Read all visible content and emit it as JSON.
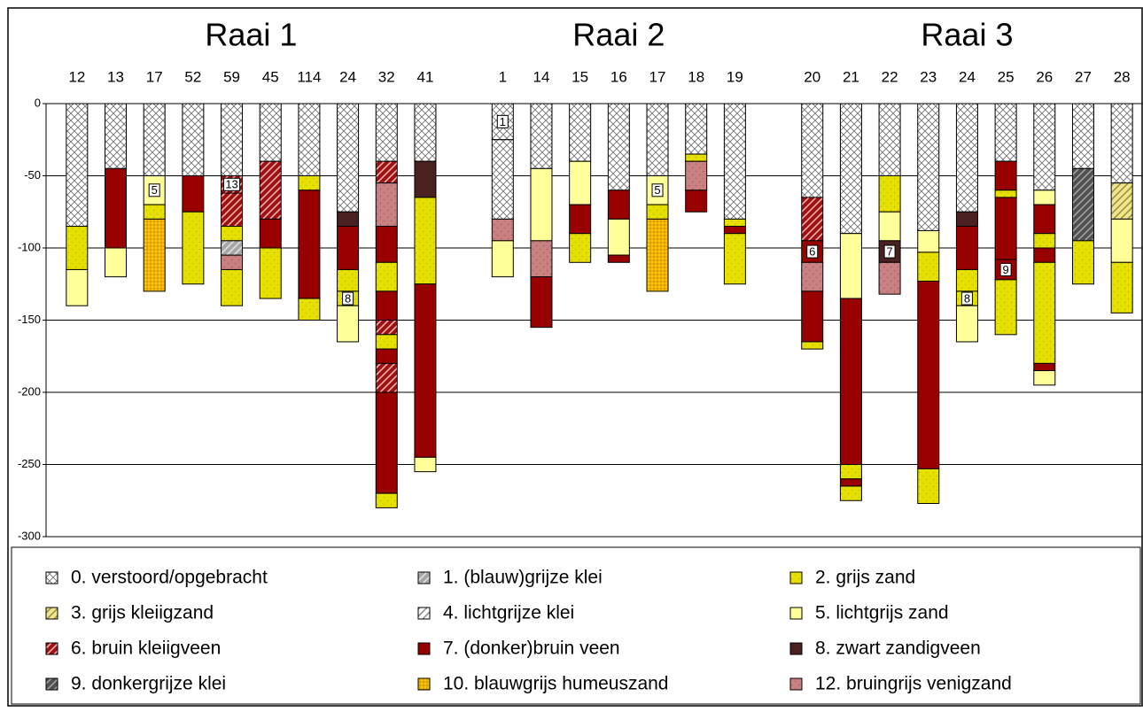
{
  "chart_data": {
    "type": "stacked-columns",
    "groups": [
      {
        "title": "Raai 1"
      },
      {
        "title": "Raai 2"
      },
      {
        "title": "Raai 3"
      }
    ],
    "categories": [
      "12",
      "13",
      "17",
      "52",
      "59",
      "45",
      "114",
      "24",
      "32",
      "41",
      null,
      "1",
      "14",
      "15",
      "16",
      "17",
      "18",
      "19",
      null,
      "20",
      "21",
      "22",
      "23",
      "24",
      "25",
      "26",
      "27",
      "28"
    ],
    "columns": [
      [
        {
          "soil": 0,
          "value": -85
        },
        {
          "soil": 2,
          "value": -30
        },
        {
          "soil": 5,
          "value": -25
        }
      ],
      [
        {
          "soil": 0,
          "value": -45
        },
        {
          "soil": 7,
          "value": -55
        },
        {
          "soil": 5,
          "value": -20
        }
      ],
      [
        {
          "soil": 0,
          "value": -50
        },
        {
          "soil": 5,
          "value": -20,
          "note": "5"
        },
        {
          "soil": 2,
          "value": -10
        },
        {
          "soil": 10,
          "value": -50
        }
      ],
      [
        {
          "soil": 0,
          "value": -50
        },
        {
          "soil": 7,
          "value": -25
        },
        {
          "soil": 2,
          "value": -50
        }
      ],
      [
        {
          "soil": 0,
          "value": -50
        },
        {
          "soil": 6,
          "value": -12,
          "note": "13"
        },
        {
          "soil": 6,
          "value": -23
        },
        {
          "soil": 2,
          "value": -10
        },
        {
          "soil": 1,
          "value": -10
        },
        {
          "soil": 11,
          "value": -10
        },
        {
          "soil": 2,
          "value": -25
        }
      ],
      [
        {
          "soil": 0,
          "value": -40
        },
        {
          "soil": 6,
          "value": -40
        },
        {
          "soil": 7,
          "value": -20
        },
        {
          "soil": 2,
          "value": -35
        }
      ],
      [
        {
          "soil": 0,
          "value": -50
        },
        {
          "soil": 2,
          "value": -10
        },
        {
          "soil": 7,
          "value": -75
        },
        {
          "soil": 2,
          "value": -15
        }
      ],
      [
        {
          "soil": 0,
          "value": -75
        },
        {
          "soil": 8,
          "value": -10
        },
        {
          "soil": 7,
          "value": -30
        },
        {
          "soil": 2,
          "value": -15
        },
        {
          "soil": 2,
          "value": -10,
          "note": "8"
        },
        {
          "soil": 5,
          "value": -25
        }
      ],
      [
        {
          "soil": 0,
          "value": -40
        },
        {
          "soil": 6,
          "value": -15
        },
        {
          "soil": 11,
          "value": -30
        },
        {
          "soil": 7,
          "value": -25
        },
        {
          "soil": 2,
          "value": -20
        },
        {
          "soil": 7,
          "value": -20
        },
        {
          "soil": 6,
          "value": -10
        },
        {
          "soil": 2,
          "value": -10
        },
        {
          "soil": 7,
          "value": -10
        },
        {
          "soil": 6,
          "value": -20
        },
        {
          "soil": 7,
          "value": -70
        },
        {
          "soil": 2,
          "value": -10
        }
      ],
      [
        {
          "soil": 0,
          "value": -40
        },
        {
          "soil": 8,
          "value": -25
        },
        {
          "soil": 2,
          "value": -60
        },
        {
          "soil": 7,
          "value": -120
        },
        {
          "soil": 5,
          "value": -10
        }
      ],
      null,
      [
        {
          "soil": 0,
          "value": -25,
          "note": "1"
        },
        {
          "soil": 0,
          "value": -55
        },
        {
          "soil": 11,
          "value": -15
        },
        {
          "soil": 5,
          "value": -25
        }
      ],
      [
        {
          "soil": 0,
          "value": -45
        },
        {
          "soil": 5,
          "value": -50
        },
        {
          "soil": 11,
          "value": -25
        },
        {
          "soil": 7,
          "value": -35
        }
      ],
      [
        {
          "soil": 0,
          "value": -40
        },
        {
          "soil": 5,
          "value": -30
        },
        {
          "soil": 7,
          "value": -20
        },
        {
          "soil": 2,
          "value": -20
        }
      ],
      [
        {
          "soil": 0,
          "value": -60
        },
        {
          "soil": 7,
          "value": -20
        },
        {
          "soil": 5,
          "value": -25
        },
        {
          "soil": 7,
          "value": -5
        }
      ],
      [
        {
          "soil": 0,
          "value": -50
        },
        {
          "soil": 5,
          "value": -20,
          "note": "5"
        },
        {
          "soil": 2,
          "value": -10
        },
        {
          "soil": 10,
          "value": -50
        }
      ],
      [
        {
          "soil": 0,
          "value": -35
        },
        {
          "soil": 2,
          "value": -5
        },
        {
          "soil": 11,
          "value": -20
        },
        {
          "soil": 7,
          "value": -15
        }
      ],
      [
        {
          "soil": 0,
          "value": -80
        },
        {
          "soil": 2,
          "value": -5
        },
        {
          "soil": 7,
          "value": -5
        },
        {
          "soil": 2,
          "value": -35
        }
      ],
      null,
      [
        {
          "soil": 0,
          "value": -65
        },
        {
          "soil": 6,
          "value": -30
        },
        {
          "soil": 7,
          "value": -15,
          "note": "6"
        },
        {
          "soil": 11,
          "value": -20
        },
        {
          "soil": 7,
          "value": -35
        },
        {
          "soil": 2,
          "value": -5
        }
      ],
      [
        {
          "soil": 0,
          "value": -90
        },
        {
          "soil": 5,
          "value": -45
        },
        {
          "soil": 7,
          "value": -115
        },
        {
          "soil": 2,
          "value": -10
        },
        {
          "soil": 7,
          "value": -5
        },
        {
          "soil": 2,
          "value": -10
        }
      ],
      [
        {
          "soil": 0,
          "value": -50
        },
        {
          "soil": 2,
          "value": -25
        },
        {
          "soil": 5,
          "value": -20
        },
        {
          "soil": 8,
          "value": -15,
          "note": "7"
        },
        {
          "soil": 11,
          "value": -22
        }
      ],
      [
        {
          "soil": 0,
          "value": -88
        },
        {
          "soil": 5,
          "value": -15
        },
        {
          "soil": 2,
          "value": -20
        },
        {
          "soil": 7,
          "value": -130
        },
        {
          "soil": 2,
          "value": -24
        }
      ],
      [
        {
          "soil": 0,
          "value": -75
        },
        {
          "soil": 8,
          "value": -10
        },
        {
          "soil": 7,
          "value": -30
        },
        {
          "soil": 2,
          "value": -15
        },
        {
          "soil": 2,
          "value": -10,
          "note": "8"
        },
        {
          "soil": 5,
          "value": -25
        }
      ],
      [
        {
          "soil": 0,
          "value": -40
        },
        {
          "soil": 7,
          "value": -20
        },
        {
          "soil": 2,
          "value": -5
        },
        {
          "soil": 7,
          "value": -43
        },
        {
          "soil": 7,
          "value": -14,
          "note": "9"
        },
        {
          "soil": 2,
          "value": -38
        }
      ],
      [
        {
          "soil": 0,
          "value": -60
        },
        {
          "soil": 5,
          "value": -10
        },
        {
          "soil": 7,
          "value": -20
        },
        {
          "soil": 2,
          "value": -10
        },
        {
          "soil": 7,
          "value": -10
        },
        {
          "soil": 2,
          "value": -70
        },
        {
          "soil": 7,
          "value": -5
        },
        {
          "soil": 5,
          "value": -10
        }
      ],
      [
        {
          "soil": 0,
          "value": -45
        },
        {
          "soil": 9,
          "value": -50
        },
        {
          "soil": 2,
          "value": -30
        }
      ],
      [
        {
          "soil": 0,
          "value": -55
        },
        {
          "soil": 3,
          "value": -25
        },
        {
          "soil": 5,
          "value": -30
        },
        {
          "soil": 2,
          "value": -35
        }
      ]
    ],
    "legend": [
      {
        "label": "0. verstoord/opgebracht",
        "color": "#ffffff",
        "ink": "#808080",
        "pattern": "cross"
      },
      {
        "label": "1. (blauw)grijze klei",
        "color": "#a6a6a6",
        "ink": "#e0e0e0",
        "pattern": "diag"
      },
      {
        "label": "2. grijs zand",
        "color": "#e6e000",
        "ink": "#a8a000",
        "pattern": "dots"
      },
      {
        "label": "3. grijs kleiigzand",
        "color": "#f0e68c",
        "ink": "#a09040",
        "pattern": "diag"
      },
      {
        "label": "4. lichtgrijze klei",
        "color": "#ffffff",
        "ink": "#909090",
        "pattern": "diag"
      },
      {
        "label": "5. lichtgrijs zand",
        "color": "#ffff99",
        "ink": "#ffff99",
        "pattern": "solid"
      },
      {
        "label": "6. bruin kleiigveen",
        "color": "#a01010",
        "ink": "#f0b0b0",
        "pattern": "diag"
      },
      {
        "label": "7. (donker)bruin veen",
        "color": "#990000",
        "ink": "#990000",
        "pattern": "solid"
      },
      {
        "label": "8. zwart zandigveen",
        "color": "#4a2020",
        "ink": "#4a2020",
        "pattern": "solid"
      },
      {
        "label": "9. donkergrijze klei",
        "color": "#505050",
        "ink": "#a0a0a0",
        "pattern": "diag"
      },
      {
        "label": "10. blauwgrijs humeuszand",
        "color": "#ffcc00",
        "ink": "#d08000",
        "pattern": "grid"
      },
      {
        "label": "12. bruingrijs venigzand",
        "color": "#c88080",
        "ink": "#8a4a4a",
        "pattern": "dots"
      }
    ],
    "ylim": [
      -300,
      0
    ],
    "yticks": [
      0,
      -50,
      -100,
      -150,
      -200,
      -250,
      -300
    ],
    "grid": true
  }
}
